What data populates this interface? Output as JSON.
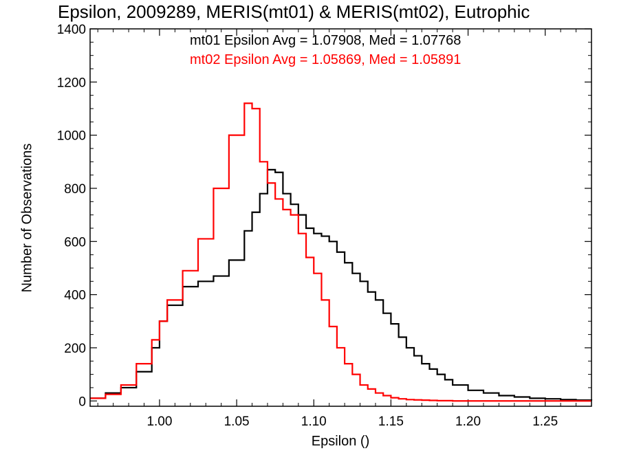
{
  "chart_data": {
    "type": "line",
    "step": true,
    "title": "Epsilon, 2009289, MERIS(mt01) & MERIS(mt02), Eutrophic",
    "xlabel": "Epsilon ()",
    "ylabel": "Number of Observations",
    "xlim": [
      0.955,
      1.28
    ],
    "ylim": [
      -20,
      1400
    ],
    "xticks": [
      "1.00",
      "1.05",
      "1.10",
      "1.15",
      "1.20",
      "1.25"
    ],
    "yticks": [
      "0",
      "200",
      "400",
      "600",
      "800",
      "1000",
      "1200",
      "1400"
    ],
    "annotations": [
      {
        "text": "mt01 Epsilon Avg = 1.07908, Med = 1.07768",
        "color": "#000000"
      },
      {
        "text": "mt02 Epsilon Avg = 1.05869, Med = 1.05891",
        "color": "#ff0000"
      }
    ],
    "x": [
      0.955,
      0.965,
      0.975,
      0.985,
      0.995,
      1.0,
      1.005,
      1.015,
      1.025,
      1.035,
      1.045,
      1.055,
      1.06,
      1.065,
      1.07,
      1.075,
      1.08,
      1.085,
      1.09,
      1.095,
      1.1,
      1.105,
      1.11,
      1.115,
      1.12,
      1.125,
      1.13,
      1.135,
      1.14,
      1.145,
      1.15,
      1.155,
      1.16,
      1.165,
      1.17,
      1.175,
      1.18,
      1.185,
      1.19,
      1.2,
      1.21,
      1.22,
      1.23,
      1.24,
      1.25,
      1.26,
      1.27,
      1.28
    ],
    "series": [
      {
        "name": "mt01",
        "color": "#000000",
        "values": [
          10,
          30,
          50,
          110,
          200,
          300,
          360,
          430,
          450,
          470,
          530,
          640,
          710,
          780,
          870,
          860,
          780,
          740,
          700,
          650,
          630,
          620,
          600,
          560,
          520,
          480,
          450,
          410,
          380,
          330,
          290,
          240,
          200,
          170,
          140,
          120,
          100,
          80,
          60,
          40,
          30,
          20,
          15,
          10,
          8,
          5,
          3,
          2
        ]
      },
      {
        "name": "mt02",
        "color": "#ff0000",
        "values": [
          10,
          25,
          60,
          140,
          230,
          300,
          380,
          490,
          610,
          800,
          1000,
          1120,
          1100,
          900,
          820,
          760,
          720,
          700,
          630,
          540,
          480,
          380,
          280,
          200,
          140,
          100,
          60,
          45,
          30,
          20,
          12,
          8,
          5,
          4,
          3,
          2,
          1,
          1,
          0,
          0,
          0,
          0,
          0,
          0,
          0,
          0,
          0,
          0
        ]
      }
    ]
  }
}
